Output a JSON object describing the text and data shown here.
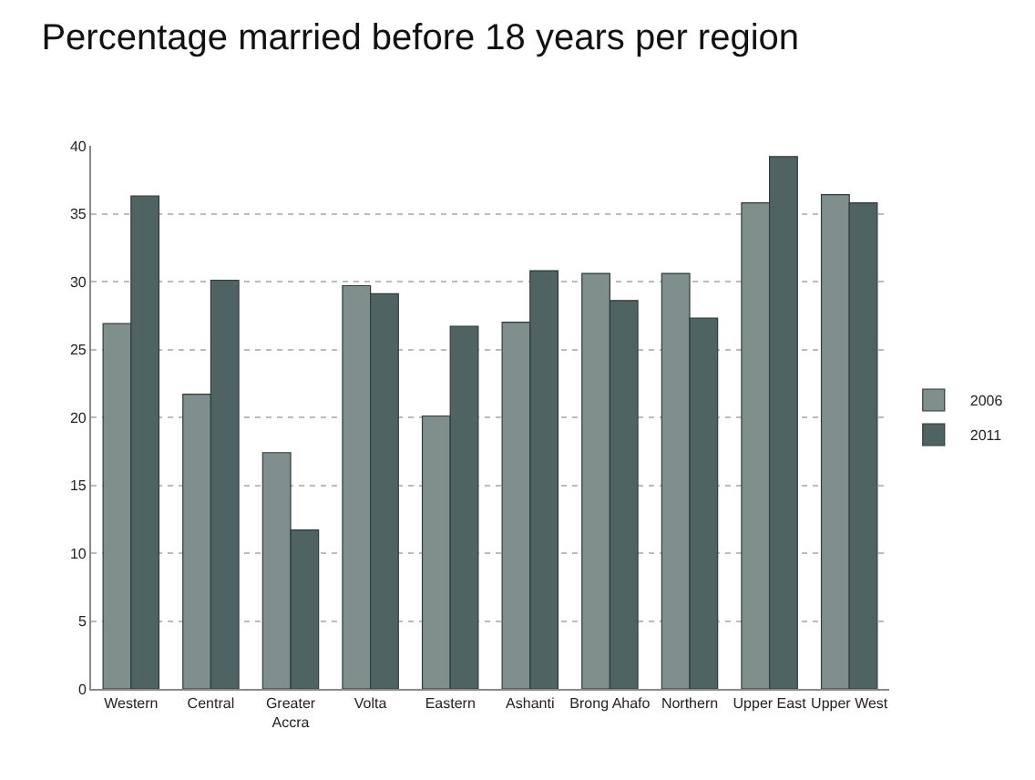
{
  "chart_data": {
    "type": "bar",
    "title": "Percentage married before 18 years per region",
    "categories": [
      "Western",
      "Central",
      "Greater Accra",
      "Volta",
      "Eastern",
      "Ashanti",
      "Brong Ahafo",
      "Northern",
      "Upper East",
      "Upper West"
    ],
    "series": [
      {
        "name": "2006",
        "color": "#7f8f8c",
        "values": [
          26.9,
          21.7,
          17.4,
          29.7,
          20.1,
          27.0,
          30.6,
          30.6,
          35.8,
          36.4
        ]
      },
      {
        "name": "2011",
        "color": "#4f6462",
        "values": [
          36.3,
          30.1,
          11.7,
          29.1,
          26.7,
          30.8,
          28.6,
          27.3,
          39.2,
          35.8
        ]
      }
    ],
    "ylim": [
      0,
      40
    ],
    "yticks": [
      0,
      5,
      10,
      15,
      20,
      25,
      30,
      35,
      40
    ],
    "grid": "y",
    "legend": "right"
  }
}
